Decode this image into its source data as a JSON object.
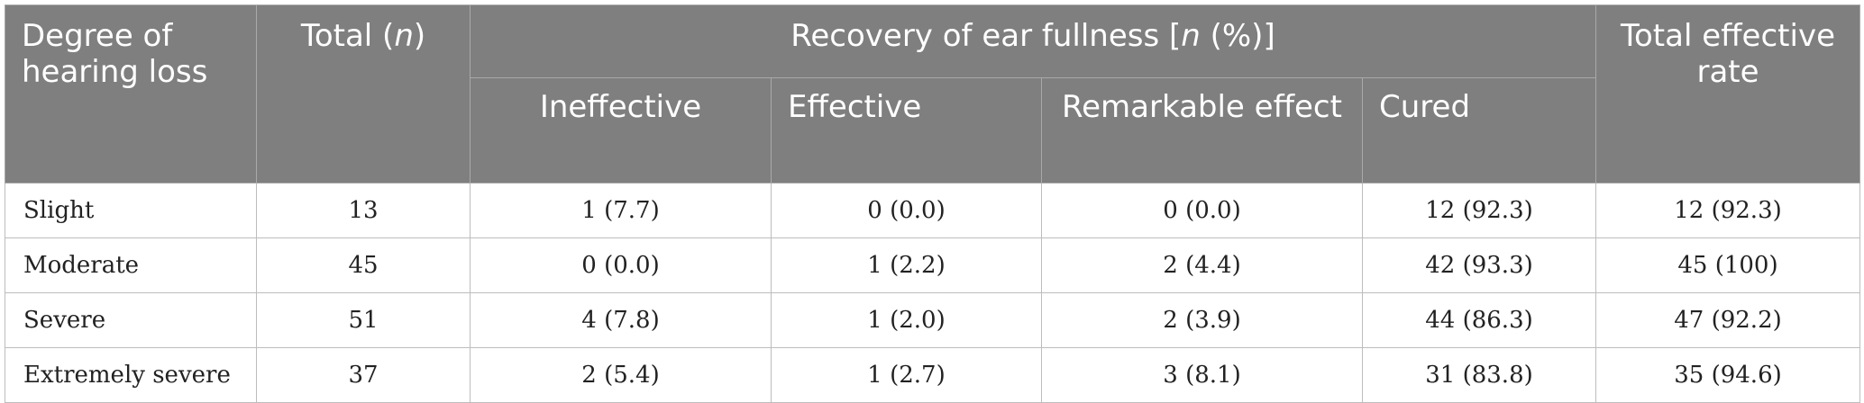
{
  "table": {
    "header": {
      "degree": "Degree of hearing loss",
      "total_prefix": "Total (",
      "total_n": "n",
      "total_suffix": ")",
      "recovery_prefix": "Recovery of ear fullness [",
      "recovery_n": "n",
      "recovery_suffix": " (%)]",
      "ineffective": "Ineffective",
      "effective": "Effective",
      "remarkable": "Remarkable effect",
      "cured": "Cured",
      "total_effective_rate": "Total effective rate"
    },
    "rows": [
      {
        "degree": "Slight",
        "total": "13",
        "ineffective": "1 (7.7)",
        "effective": "0 (0.0)",
        "remarkable": "0 (0.0)",
        "cured": "12 (92.3)",
        "rate": "12 (92.3)"
      },
      {
        "degree": "Moderate",
        "total": "45",
        "ineffective": "0 (0.0)",
        "effective": "1 (2.2)",
        "remarkable": "2 (4.4)",
        "cured": "42 (93.3)",
        "rate": "45 (100)"
      },
      {
        "degree": "Severe",
        "total": "51",
        "ineffective": "4 (7.8)",
        "effective": "1 (2.0)",
        "remarkable": "2 (3.9)",
        "cured": "44 (86.3)",
        "rate": "47 (92.2)"
      },
      {
        "degree": "Extremely severe",
        "total": "37",
        "ineffective": "2 (5.4)",
        "effective": "1 (2.7)",
        "remarkable": "3 (8.1)",
        "cured": "31 (83.8)",
        "rate": "35 (94.6)"
      }
    ]
  }
}
